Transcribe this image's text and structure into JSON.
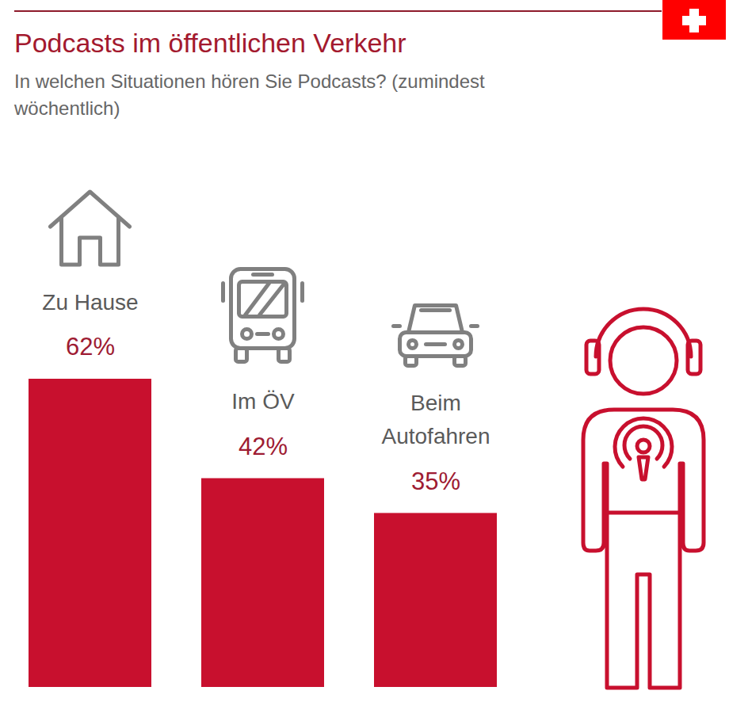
{
  "chart_data": {
    "type": "bar",
    "title": "Podcasts im öffentlichen Verkehr",
    "subtitle": "In welchen Situationen hören Sie Podcasts? (zumindest wöchentlich)",
    "categories": [
      "Zu Hause",
      "Im ÖV",
      "Beim Autofahren"
    ],
    "values": [
      62,
      42,
      35
    ],
    "value_labels": [
      "62%",
      "42%",
      "35%"
    ],
    "color": "#c8102e",
    "data_labels": true,
    "tick_labels": false
  }
}
